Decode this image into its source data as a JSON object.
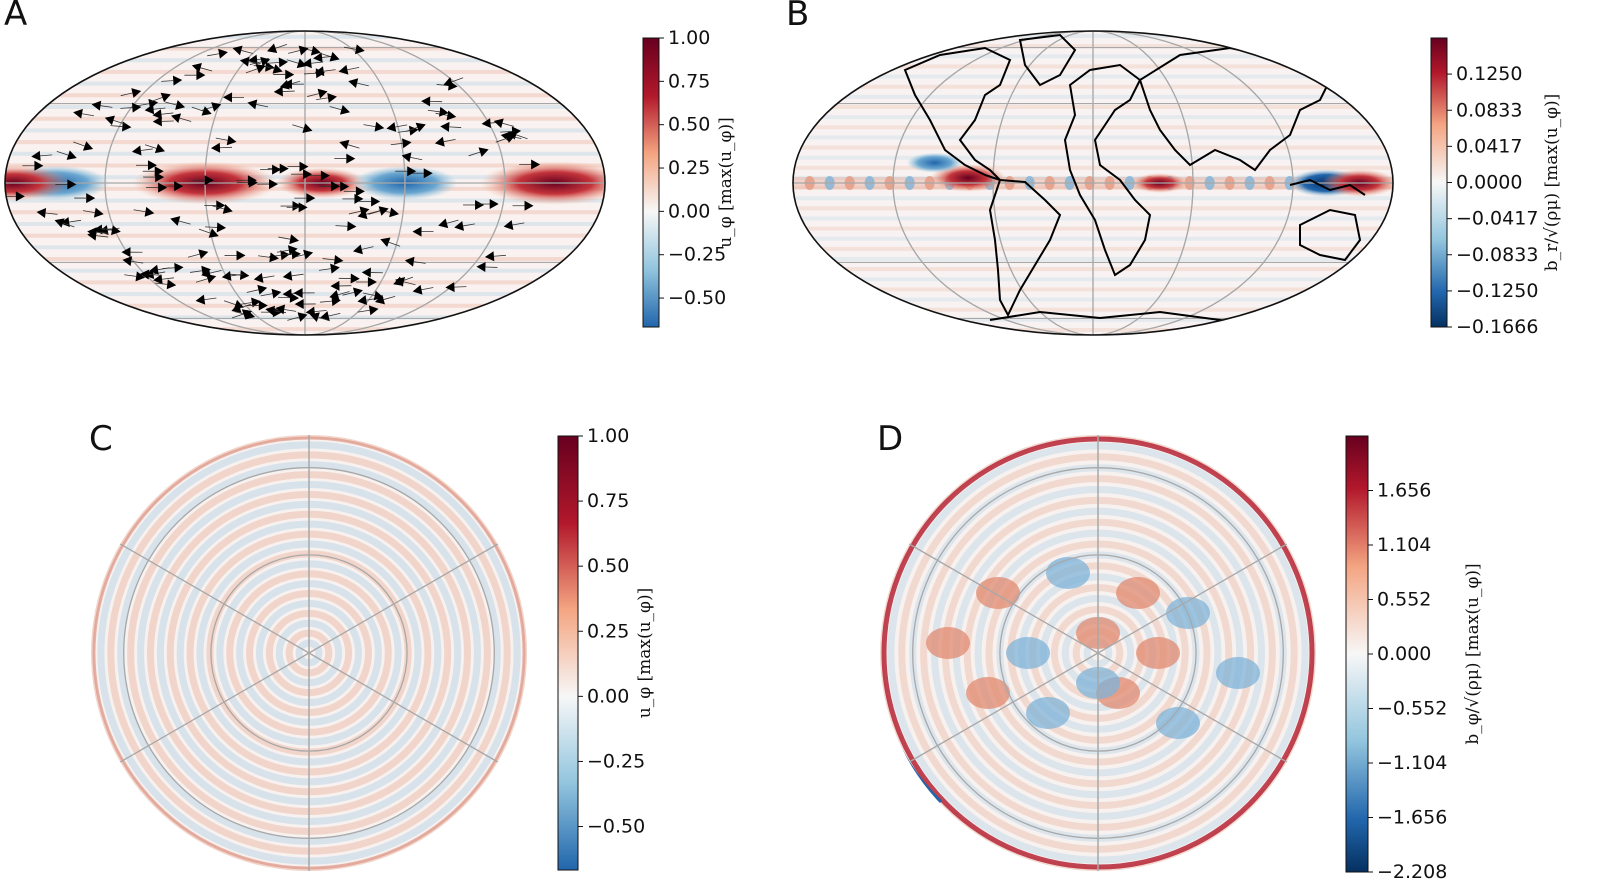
{
  "panels": [
    "A",
    "B",
    "C",
    "D"
  ],
  "chart_data": [
    {
      "panel": "A",
      "type": "heatmap",
      "projection": "mollweide",
      "overlay": "flow-direction arrows",
      "colormap": "diverging blue-white-red",
      "colorbar": {
        "label": "u_φ [max(u_φ)]",
        "vmin": -0.667,
        "vmax": 1.0,
        "ticks": [
          "1.00",
          "0.75",
          "0.50",
          "0.25",
          "0.00",
          "−0.25",
          "−0.50"
        ],
        "tick_values": [
          1.0,
          0.75,
          0.5,
          0.25,
          0.0,
          -0.25,
          -0.5
        ]
      },
      "features": [
        {
          "lon": -150,
          "lat": 0,
          "value": -0.55
        },
        {
          "lon": -60,
          "lat": 0,
          "value": 0.95
        },
        {
          "lon": 10,
          "lat": 0,
          "value": 0.35
        },
        {
          "lon": 60,
          "lat": 0,
          "value": -0.5
        },
        {
          "lon": 150,
          "lat": 0,
          "value": 1.0
        },
        {
          "lon": -175,
          "lat": 0,
          "value": 0.6
        }
      ]
    },
    {
      "panel": "B",
      "type": "heatmap",
      "projection": "mollweide",
      "overlay": "coastlines",
      "colormap": "diverging blue-white-red",
      "colorbar": {
        "label": "b_r/√(ρμ) [max(u_φ)]",
        "vmin": -0.1666,
        "vmax": 0.1666,
        "ticks": [
          "0.1250",
          "0.0833",
          "0.0417",
          "0.0000",
          "−0.0417",
          "−0.0833",
          "−0.1250",
          "−0.1666"
        ],
        "tick_values": [
          0.125,
          0.0833,
          0.0417,
          0.0,
          -0.0417,
          -0.0833,
          -0.125,
          -0.1666
        ]
      },
      "features": [
        {
          "lon": -75,
          "lat": 3,
          "value": 0.16
        },
        {
          "lon": -95,
          "lat": 12,
          "value": -0.12
        },
        {
          "lon": 140,
          "lat": 0,
          "value": -0.16
        },
        {
          "lon": 160,
          "lat": 0,
          "value": 0.14
        },
        {
          "lon": 40,
          "lat": 0,
          "value": 0.05
        }
      ]
    },
    {
      "panel": "C",
      "type": "heatmap",
      "projection": "orthographic polar",
      "colormap": "diverging blue-white-red",
      "colorbar": {
        "label": "u_φ [max(u_φ)]",
        "vmin": -0.667,
        "vmax": 1.0,
        "ticks": [
          "1.00",
          "0.75",
          "0.50",
          "0.25",
          "0.00",
          "−0.25",
          "−0.50"
        ],
        "tick_values": [
          1.0,
          0.75,
          0.5,
          0.25,
          0.0,
          -0.25,
          -0.5
        ]
      }
    },
    {
      "panel": "D",
      "type": "heatmap",
      "projection": "orthographic polar",
      "colormap": "diverging blue-white-red",
      "colorbar": {
        "label": "b_φ/√(ρμ) [max(u_φ)]",
        "vmin": -2.208,
        "vmax": 2.208,
        "ticks": [
          "1.656",
          "1.104",
          "0.552",
          "0.000",
          "−0.552",
          "−1.104",
          "−1.656",
          "−2.208"
        ],
        "tick_values": [
          1.656,
          1.104,
          0.552,
          0.0,
          -0.552,
          -1.104,
          -1.656,
          -2.208
        ]
      }
    }
  ]
}
